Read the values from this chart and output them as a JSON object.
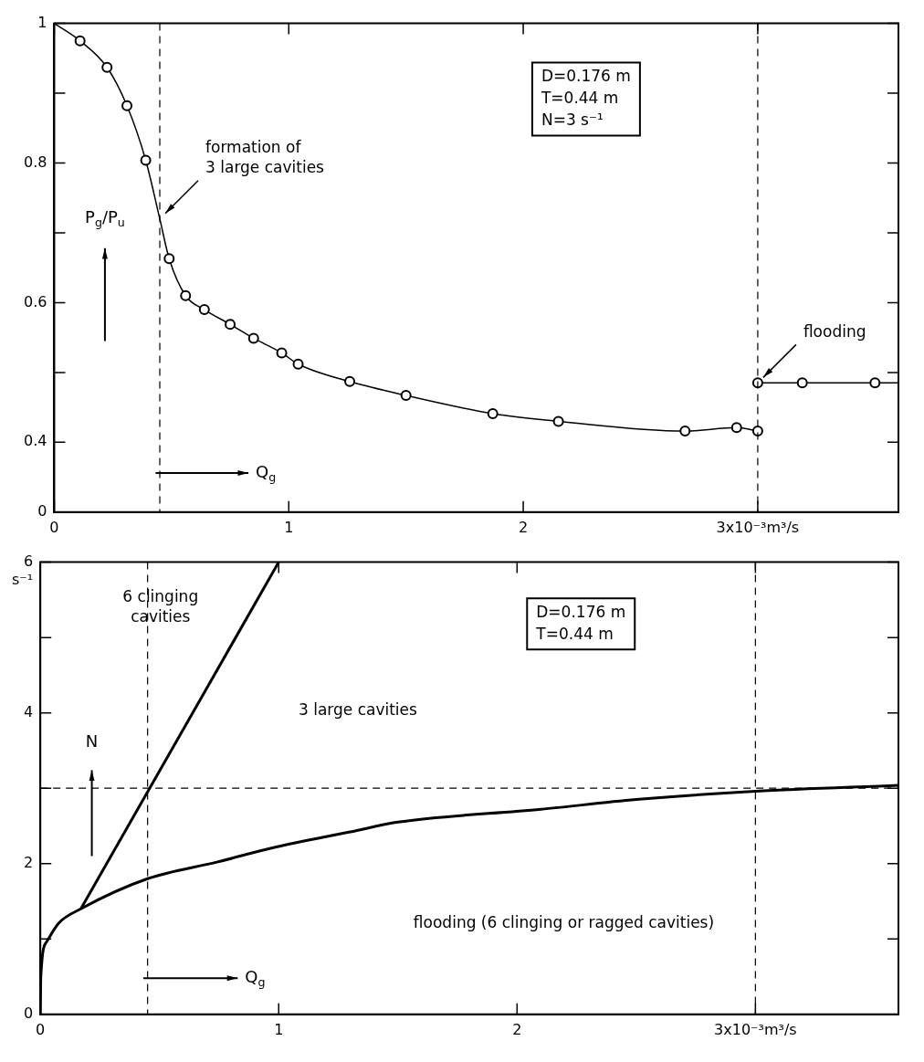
{
  "chart_data": [
    {
      "type": "line",
      "xlabel": "Q$_{g}$",
      "ylabel": "P$_{g}$/P$_{u}$",
      "xlim": [
        0,
        3.6
      ],
      "xticks": [
        0,
        1,
        2,
        {
          "value": 3,
          "label": "3x10⁻³m³/s"
        }
      ],
      "ylim": [
        0.3,
        1
      ],
      "yticks": [
        {
          "value": 0.3,
          "label": "0"
        },
        0.4,
        {
          "value": 0.5,
          "label": null
        },
        0.6,
        {
          "value": 0.7,
          "label": null
        },
        0.8,
        {
          "value": 0.9,
          "label": null
        },
        1
      ],
      "grid": false,
      "legend": false,
      "series": [
        {
          "color": "#000000",
          "marker": "none",
          "x": [
            0,
            0.11,
            0.225,
            0.31,
            0.39,
            0.45,
            0.49,
            0.56,
            0.64,
            0.75,
            0.85,
            0.97,
            1.04,
            1.26,
            1.5,
            1.87,
            2.15,
            2.69,
            2.91,
            3.0
          ],
          "values": [
            1,
            0.975,
            0.937,
            0.882,
            0.804,
            0.72,
            0.663,
            0.61,
            0.59,
            0.569,
            0.549,
            0.528,
            0.512,
            0.487,
            0.467,
            0.441,
            0.43,
            0.416,
            0.421,
            0.416
          ]
        },
        {
          "color": "#000000",
          "marker": "none",
          "x": [
            3.0,
            3.19,
            3.5,
            3.6
          ],
          "values": [
            0.485,
            0.485,
            0.485,
            0.485
          ]
        },
        {
          "type": "scatter",
          "color": "#000000",
          "marker": "circle",
          "x": [
            0.11,
            0.225,
            0.31,
            0.39,
            0.49,
            0.56,
            0.64,
            0.75,
            0.85,
            0.97,
            1.04,
            1.26,
            1.5,
            1.87,
            2.15,
            2.69,
            2.91,
            3.0,
            3.0,
            3.19,
            3.5
          ],
          "values": [
            0.975,
            0.937,
            0.882,
            0.804,
            0.663,
            0.61,
            0.59,
            0.569,
            0.549,
            0.528,
            0.512,
            0.487,
            0.467,
            0.441,
            0.43,
            0.416,
            0.421,
            0.416,
            0.485,
            0.485,
            0.485
          ]
        }
      ],
      "ref_lines": [
        {
          "axis": "x",
          "value": 0.45,
          "line_style": "dashed"
        },
        {
          "axis": "x",
          "value": 3,
          "line_style": "dashed"
        }
      ],
      "annotations": [
        "D=0.176 m\nT=0.44 m\nN=3 s⁻¹",
        {
          "text": "formation of\n3 large cavities",
          "x": 0.45,
          "y": 0.72
        },
        {
          "text": "flooding",
          "x": 3.0,
          "y": 0.485
        }
      ]
    },
    {
      "type": "line",
      "xlabel": "Q$_{g}$",
      "ylabel": "N",
      "xlim": [
        0,
        3.6
      ],
      "xticks": [
        0,
        1,
        2,
        {
          "value": 3,
          "label": "3x10⁻³m³/s"
        }
      ],
      "ylim": [
        0,
        6
      ],
      "yticks": [
        0,
        {
          "value": 1,
          "label": null
        },
        2,
        {
          "value": 3,
          "label": null
        },
        4,
        {
          "value": 5,
          "label": null
        },
        6
      ],
      "grid": false,
      "legend": false,
      "series": [
        {
          "color": "#000000",
          "marker": "none",
          "x": [
            0.17,
            1
          ],
          "values": [
            1.4,
            6
          ]
        },
        {
          "color": "#000000",
          "marker": "none",
          "x": [
            0,
            0.002,
            0.026,
            0.077,
            0.17,
            0.45,
            0.74,
            0.99,
            1.3,
            1.5,
            2.1,
            2.5,
            3.0,
            3.6
          ],
          "values": [
            0,
            0.5,
            0.96,
            1.21,
            1.4,
            1.8,
            2.02,
            2.22,
            2.42,
            2.55,
            2.72,
            2.85,
            2.96,
            3.04
          ]
        }
      ],
      "ref_lines": [
        {
          "axis": "x",
          "value": 0.45,
          "line_style": "dashed"
        },
        {
          "axis": "x",
          "value": 3,
          "line_style": "dashed"
        },
        {
          "axis": "y",
          "value": 3,
          "line_style": "dashed"
        }
      ],
      "annotations": [
        "D=0.176 m\nT=0.44 m",
        "s⁻¹",
        "6 clinging\ncavities",
        "3 large cavities",
        "flooding (6 clinging or ragged cavities)"
      ]
    }
  ]
}
